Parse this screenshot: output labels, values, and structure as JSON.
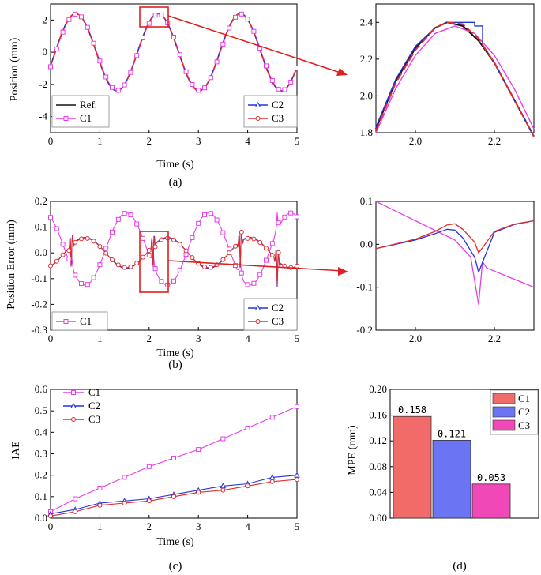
{
  "colors": {
    "ref": "#111111",
    "c1": "#e83ce8",
    "c2": "#2233dd",
    "c3": "#e02c2c",
    "bar1": "#f26b6b",
    "bar2": "#6b74f2",
    "bar3": "#f048b6",
    "zoom": "#e02020"
  },
  "captions": {
    "a": "(a)",
    "b": "(b)",
    "c": "(c)",
    "d": "(d)"
  },
  "chart_data": [
    {
      "id": "a",
      "type": "line",
      "xlabel": "Time (s)",
      "ylabel": "Position (mm)",
      "xlim": [
        0,
        5
      ],
      "ylim": [
        -5,
        3
      ],
      "xticks": [
        "0",
        "1",
        "2",
        "3",
        "4",
        "5"
      ],
      "yticks": [
        "-4",
        "-2",
        "0",
        "2"
      ],
      "legend": [
        "Ref.",
        "C1",
        "C2",
        "C3"
      ],
      "legend_placement": [
        "bottom-left",
        "bottom-right"
      ],
      "signal": {
        "amplitude": 2.4,
        "period": 1.67
      }
    },
    {
      "id": "a-zoom",
      "type": "line",
      "xlim": [
        1.9,
        2.3
      ],
      "ylim": [
        1.8,
        2.5
      ],
      "xticks": [
        "2.0",
        "2.2"
      ],
      "yticks": [
        "1.8",
        "2.0",
        "2.2",
        "2.4"
      ],
      "series": [
        {
          "name": "Ref.",
          "x": [
            1.9,
            1.95,
            2.0,
            2.05,
            2.08,
            2.12,
            2.16,
            2.2,
            2.25,
            2.3
          ],
          "y": [
            1.82,
            2.08,
            2.26,
            2.37,
            2.4,
            2.38,
            2.3,
            2.18,
            1.98,
            1.78
          ]
        },
        {
          "name": "C1",
          "x": [
            1.9,
            1.95,
            2.0,
            2.05,
            2.1,
            2.15,
            2.2,
            2.25,
            2.3
          ],
          "y": [
            1.8,
            2.04,
            2.22,
            2.34,
            2.38,
            2.34,
            2.22,
            2.04,
            1.82
          ]
        },
        {
          "name": "C2",
          "x": [
            1.9,
            1.95,
            2.0,
            2.05,
            2.08,
            2.1,
            2.15,
            2.15,
            2.17,
            2.17,
            2.2,
            2.25,
            2.3
          ],
          "y": [
            1.83,
            2.09,
            2.27,
            2.37,
            2.4,
            2.4,
            2.4,
            2.38,
            2.38,
            2.28,
            2.18,
            1.98,
            1.78
          ]
        },
        {
          "name": "C3",
          "x": [
            1.9,
            1.95,
            2.0,
            2.05,
            2.08,
            2.12,
            2.16,
            2.2,
            2.25,
            2.3
          ],
          "y": [
            1.81,
            2.07,
            2.25,
            2.37,
            2.4,
            2.39,
            2.31,
            2.18,
            1.98,
            1.78
          ]
        }
      ]
    },
    {
      "id": "b",
      "type": "line",
      "xlabel": "Time (s)",
      "ylabel": "Position Error (mm)",
      "xlim": [
        0,
        5
      ],
      "ylim": [
        -0.3,
        0.2
      ],
      "xticks": [
        "0",
        "1",
        "2",
        "3",
        "4",
        "5"
      ],
      "yticks": [
        "-0.3",
        "-0.2",
        "-0.1",
        "0.0",
        "0.1",
        "0.2"
      ],
      "legend": [
        "C1",
        "C2",
        "C3"
      ],
      "legend_placement": [
        "bottom-left",
        "bottom-right"
      ],
      "c1_error_amplitude": 0.14,
      "c23_error_amplitude": 0.06,
      "spike_times": [
        0.42,
        2.08,
        3.85,
        4.6
      ]
    },
    {
      "id": "b-zoom",
      "type": "line",
      "xlim": [
        1.9,
        2.3
      ],
      "ylim": [
        -0.2,
        0.1
      ],
      "xticks": [
        "2.0",
        "2.2"
      ],
      "yticks": [
        "-0.2",
        "-0.1",
        "0.0",
        "0.1"
      ],
      "series": [
        {
          "name": "C1",
          "x": [
            1.9,
            2.0,
            2.1,
            2.14,
            2.16,
            2.17,
            2.18,
            2.22,
            2.26,
            2.3
          ],
          "y": [
            0.1,
            0.055,
            0.01,
            -0.03,
            -0.14,
            -0.04,
            -0.055,
            -0.07,
            -0.085,
            -0.1
          ]
        },
        {
          "name": "C2",
          "x": [
            1.9,
            2.0,
            2.05,
            2.08,
            2.1,
            2.12,
            2.15,
            2.16,
            2.2,
            2.25,
            2.3
          ],
          "y": [
            -0.01,
            0.01,
            0.025,
            0.035,
            0.033,
            0.015,
            -0.03,
            -0.065,
            0.028,
            0.046,
            0.055
          ]
        },
        {
          "name": "C3",
          "x": [
            1.9,
            2.0,
            2.05,
            2.08,
            2.1,
            2.12,
            2.15,
            2.16,
            2.2,
            2.25,
            2.3
          ],
          "y": [
            -0.01,
            0.012,
            0.03,
            0.045,
            0.048,
            0.035,
            0.005,
            -0.02,
            0.03,
            0.047,
            0.055
          ]
        }
      ]
    },
    {
      "id": "c",
      "type": "line",
      "xlabel": "Time (s)",
      "ylabel": "IAE",
      "xlim": [
        0,
        5
      ],
      "ylim": [
        0,
        0.6
      ],
      "xticks": [
        "0",
        "1",
        "2",
        "3",
        "4",
        "5"
      ],
      "yticks": [
        "0.0",
        "0.1",
        "0.2",
        "0.3",
        "0.4",
        "0.5",
        "0.6"
      ],
      "legend": [
        "C1",
        "C2",
        "C3"
      ],
      "legend_placement": "top-left",
      "series": [
        {
          "name": "C1",
          "x": [
            0,
            0.5,
            1,
            1.5,
            2,
            2.5,
            3,
            3.5,
            4,
            4.5,
            5
          ],
          "y": [
            0.03,
            0.09,
            0.14,
            0.19,
            0.24,
            0.28,
            0.32,
            0.37,
            0.42,
            0.47,
            0.52
          ]
        },
        {
          "name": "C2",
          "x": [
            0,
            0.5,
            1,
            1.5,
            2,
            2.5,
            3,
            3.5,
            4,
            4.5,
            5
          ],
          "y": [
            0.02,
            0.04,
            0.07,
            0.08,
            0.09,
            0.11,
            0.13,
            0.15,
            0.16,
            0.19,
            0.2
          ]
        },
        {
          "name": "C3",
          "x": [
            0,
            0.5,
            1,
            1.5,
            2,
            2.5,
            3,
            3.5,
            4,
            4.5,
            5
          ],
          "y": [
            0.01,
            0.03,
            0.06,
            0.07,
            0.08,
            0.1,
            0.12,
            0.13,
            0.15,
            0.17,
            0.18
          ]
        }
      ]
    },
    {
      "id": "d",
      "type": "bar",
      "ylabel": "MPE (mm)",
      "ylim": [
        0,
        0.2
      ],
      "yticks": [
        "0.00",
        "0.04",
        "0.08",
        "0.12",
        "0.16",
        "0.20"
      ],
      "categories": [
        "C1",
        "C2",
        "C3"
      ],
      "values": [
        0.158,
        0.121,
        0.053
      ],
      "value_labels": [
        "0.158",
        "0.121",
        "0.053"
      ],
      "legend": [
        "C1",
        "C2",
        "C3"
      ],
      "legend_placement": "top-right"
    }
  ]
}
